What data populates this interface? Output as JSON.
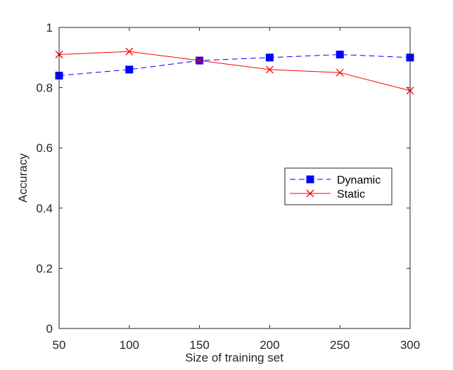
{
  "chart_data": {
    "type": "line",
    "title": "",
    "xlabel": "Size of training set",
    "ylabel": "Accuracy",
    "x": [
      50,
      100,
      150,
      200,
      250,
      300
    ],
    "xlim": [
      50,
      300
    ],
    "ylim": [
      0,
      1
    ],
    "xticks": [
      50,
      100,
      150,
      200,
      250,
      300
    ],
    "yticks": [
      0,
      0.2,
      0.4,
      0.6,
      0.8,
      1
    ],
    "xtick_labels": [
      "50",
      "100",
      "150",
      "200",
      "250",
      "300"
    ],
    "ytick_labels": [
      "0",
      "0.2",
      "0.4",
      "0.6",
      "0.8",
      "1"
    ],
    "grid": false,
    "legend_position": "center-right",
    "series": [
      {
        "name": "Dynamic",
        "values": [
          0.84,
          0.86,
          0.89,
          0.9,
          0.91,
          0.9
        ],
        "color": "#0000ff",
        "line_style": "dashed",
        "marker": "filled-square"
      },
      {
        "name": "Static",
        "values": [
          0.91,
          0.92,
          0.89,
          0.86,
          0.85,
          0.79
        ],
        "color": "#ff0000",
        "line_style": "solid",
        "marker": "x"
      }
    ]
  }
}
